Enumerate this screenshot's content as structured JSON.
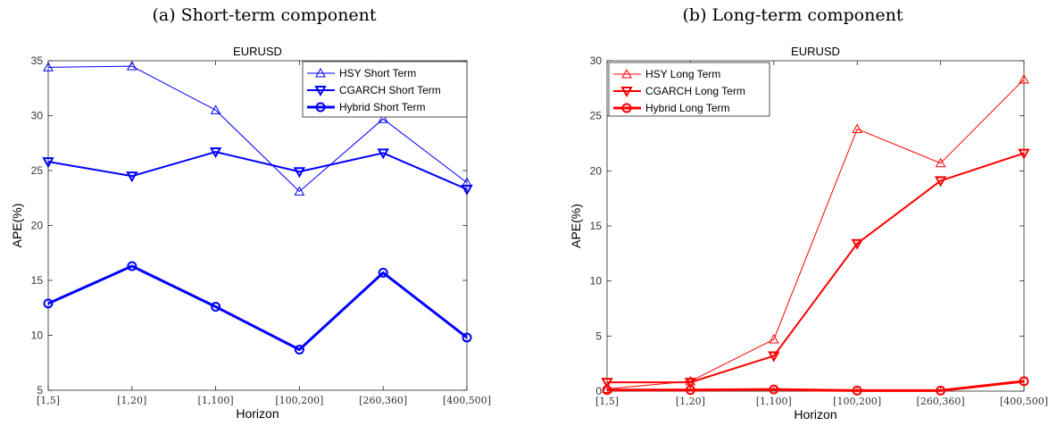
{
  "captions": [
    "(a) Short-term component",
    "(b) Long-term component"
  ],
  "chart_data": [
    {
      "type": "line",
      "title": "EURUSD",
      "xlabel": "Horizon",
      "ylabel": "APE(%)",
      "categories": [
        "[1,5]",
        "[1,20]",
        "[1,100]",
        "[100,200]",
        "[260,360]",
        "[400,500]"
      ],
      "ylim": [
        5,
        35
      ],
      "yticks": [
        5,
        10,
        15,
        20,
        25,
        30,
        35
      ],
      "grid": false,
      "legend_position": "top-right",
      "series": [
        {
          "name": "HSY Short Term",
          "values": [
            34.4,
            34.5,
            30.5,
            23.1,
            29.7,
            23.9
          ],
          "color": "#0000ff",
          "marker": "triangle-up",
          "width": 1
        },
        {
          "name": "CGARCH Short Term",
          "values": [
            25.8,
            24.5,
            26.7,
            24.9,
            26.6,
            23.3
          ],
          "color": "#0000ff",
          "marker": "triangle-down",
          "width": 2
        },
        {
          "name": "Hybrid Short Term",
          "values": [
            12.9,
            16.3,
            12.6,
            8.7,
            15.7,
            9.8
          ],
          "color": "#0000ff",
          "marker": "circle",
          "width": 3
        }
      ]
    },
    {
      "type": "line",
      "title": "EURUSD",
      "xlabel": "Horizon",
      "ylabel": "APE(%)",
      "categories": [
        "[1,5]",
        "[1,20]",
        "[1,100]",
        "[100,200]",
        "[260,360]",
        "[400,500]"
      ],
      "ylim": [
        0,
        30
      ],
      "yticks": [
        0,
        5,
        10,
        15,
        20,
        25,
        30
      ],
      "grid": false,
      "legend_position": "top-left",
      "series": [
        {
          "name": "HSY Long Term",
          "values": [
            0.2,
            0.9,
            4.7,
            23.8,
            20.7,
            28.3
          ],
          "color": "#ff0000",
          "marker": "triangle-up",
          "width": 1
        },
        {
          "name": "CGARCH Long Term",
          "values": [
            0.8,
            0.8,
            3.2,
            13.4,
            19.1,
            21.6
          ],
          "color": "#ff0000",
          "marker": "triangle-down",
          "width": 2
        },
        {
          "name": "Hybrid Long Term",
          "values": [
            0.1,
            0.1,
            0.15,
            0.05,
            0.05,
            0.9
          ],
          "color": "#ff0000",
          "marker": "circle",
          "width": 3
        }
      ]
    }
  ]
}
